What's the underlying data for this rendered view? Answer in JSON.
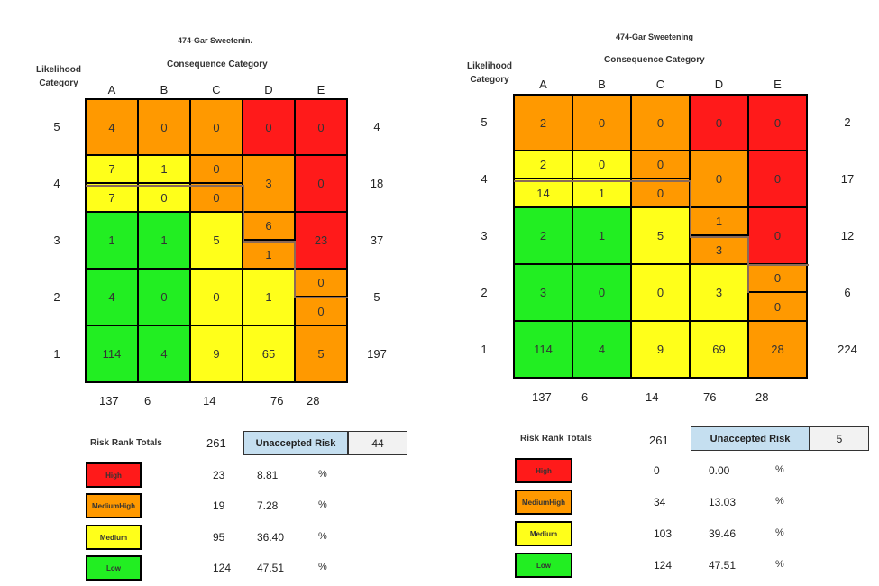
{
  "colors": {
    "high": "#ff1a1a",
    "medhigh": "#ff9900",
    "medium": "#ffff1a",
    "low": "#22ee22"
  },
  "chart_data": [
    {
      "type": "table",
      "title": "474-Gar Sweetenin.",
      "subtitle": "Consequence Category",
      "row_axis_label": "Likelihood Category",
      "columns": [
        "A",
        "B",
        "C",
        "D",
        "E"
      ],
      "rows": [
        "5",
        "4",
        "3",
        "2",
        "1"
      ],
      "cells": [
        [
          {
            "v": "4",
            "c": "medhigh"
          },
          {
            "v": "0",
            "c": "medhigh"
          },
          {
            "v": "0",
            "c": "medhigh"
          },
          {
            "v": "0",
            "c": "high"
          },
          {
            "v": "0",
            "c": "high"
          }
        ],
        [
          {
            "v": "7",
            "v2": "7",
            "c": "medium"
          },
          {
            "v": "1",
            "v2": "0",
            "c": "medium"
          },
          {
            "v": "0",
            "v2": "0",
            "c": "medhigh"
          },
          {
            "v": "3",
            "c": "medhigh"
          },
          {
            "v": "0",
            "c": "high"
          }
        ],
        [
          {
            "v": "1",
            "c": "low"
          },
          {
            "v": "1",
            "c": "low"
          },
          {
            "v": "5",
            "c": "medium"
          },
          {
            "v": "6",
            "v2": "1",
            "c": "medhigh"
          },
          {
            "v": "23",
            "c": "high"
          }
        ],
        [
          {
            "v": "4",
            "c": "low"
          },
          {
            "v": "0",
            "c": "low"
          },
          {
            "v": "0",
            "c": "medium"
          },
          {
            "v": "1",
            "c": "medium"
          },
          {
            "v": "0",
            "v2": "0",
            "c": "medhigh"
          }
        ],
        [
          {
            "v": "114",
            "c": "low"
          },
          {
            "v": "4",
            "c": "low"
          },
          {
            "v": "9",
            "c": "medium"
          },
          {
            "v": "65",
            "c": "medium"
          },
          {
            "v": "5",
            "c": "medhigh"
          }
        ]
      ],
      "row_totals": [
        "4",
        "18",
        "37",
        "5",
        "197"
      ],
      "col_totals": [
        "137",
        "6",
        "14",
        "76",
        "28"
      ],
      "risk_rank_label": "Risk Rank Totals",
      "risk_rank_total": "261",
      "unaccepted_label": "Unaccepted Risk",
      "unaccepted_value": "44",
      "legend": [
        {
          "label": "High",
          "c": "high",
          "count": "23",
          "pct": "8.81",
          "unit": "%"
        },
        {
          "label": "MediumHigh",
          "c": "medhigh",
          "count": "19",
          "pct": "7.28",
          "unit": "%"
        },
        {
          "label": "Medium",
          "c": "medium",
          "count": "95",
          "pct": "36.40",
          "unit": "%"
        },
        {
          "label": "Low",
          "c": "low",
          "count": "124",
          "pct": "47.51",
          "unit": "%"
        }
      ]
    },
    {
      "type": "table",
      "title": "474-Gar Sweetening",
      "subtitle": "Consequence Category",
      "row_axis_label": "Likelihood Category",
      "columns": [
        "A",
        "B",
        "C",
        "D",
        "E"
      ],
      "rows": [
        "5",
        "4",
        "3",
        "2",
        "1"
      ],
      "cells": [
        [
          {
            "v": "2",
            "c": "medhigh"
          },
          {
            "v": "0",
            "c": "medhigh"
          },
          {
            "v": "0",
            "c": "medhigh"
          },
          {
            "v": "0",
            "c": "high"
          },
          {
            "v": "0",
            "c": "high"
          }
        ],
        [
          {
            "v": "2",
            "v2": "14",
            "c": "medium"
          },
          {
            "v": "0",
            "v2": "1",
            "c": "medium"
          },
          {
            "v": "0",
            "v2": "0",
            "c": "medhigh"
          },
          {
            "v": "0",
            "c": "medhigh"
          },
          {
            "v": "0",
            "c": "high"
          }
        ],
        [
          {
            "v": "2",
            "c": "low"
          },
          {
            "v": "1",
            "c": "low"
          },
          {
            "v": "5",
            "c": "medium"
          },
          {
            "v": "1",
            "v2": "3",
            "c": "medhigh"
          },
          {
            "v": "0",
            "c": "high"
          }
        ],
        [
          {
            "v": "3",
            "c": "low"
          },
          {
            "v": "0",
            "c": "low"
          },
          {
            "v": "0",
            "c": "medium"
          },
          {
            "v": "3",
            "c": "medium"
          },
          {
            "v": "0",
            "v2": "0",
            "c": "medhigh"
          }
        ],
        [
          {
            "v": "114",
            "c": "low"
          },
          {
            "v": "4",
            "c": "low"
          },
          {
            "v": "9",
            "c": "medium"
          },
          {
            "v": "69",
            "c": "medium"
          },
          {
            "v": "28",
            "c": "medhigh"
          }
        ]
      ],
      "row_totals": [
        "2",
        "17",
        "12",
        "6",
        "224"
      ],
      "col_totals": [
        "137",
        "6",
        "14",
        "76",
        "28"
      ],
      "risk_rank_label": "Risk Rank Totals",
      "risk_rank_total": "261",
      "unaccepted_label": "Unaccepted Risk",
      "unaccepted_value": "5",
      "legend": [
        {
          "label": "High",
          "c": "high",
          "count": "0",
          "pct": "0.00",
          "unit": "%"
        },
        {
          "label": "MediumHigh",
          "c": "medhigh",
          "count": "34",
          "pct": "13.03",
          "unit": "%"
        },
        {
          "label": "Medium",
          "c": "medium",
          "count": "103",
          "pct": "39.46",
          "unit": "%"
        },
        {
          "label": "Low",
          "c": "low",
          "count": "124",
          "pct": "47.51",
          "unit": "%"
        }
      ]
    }
  ]
}
